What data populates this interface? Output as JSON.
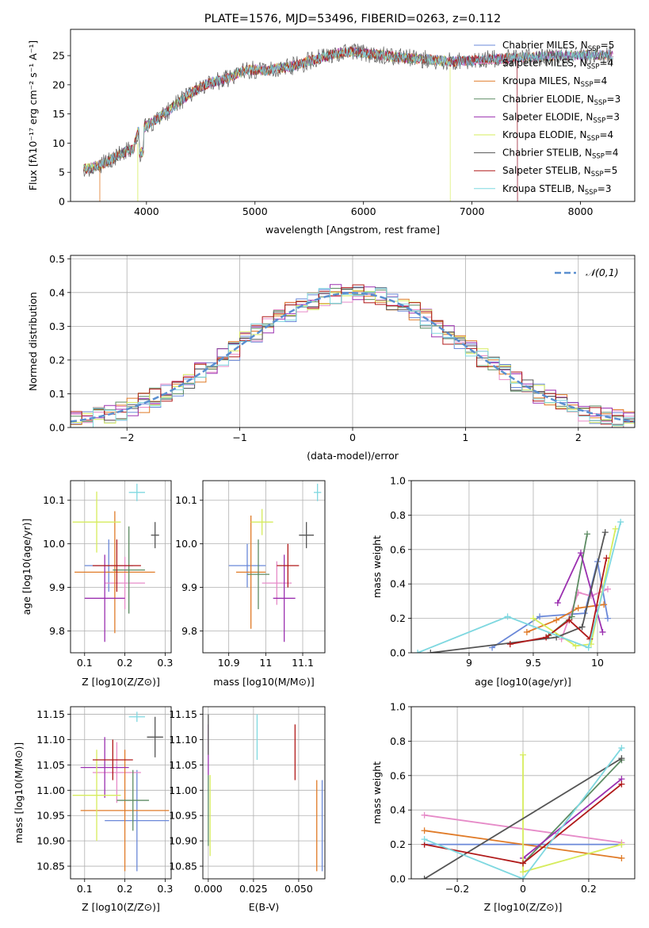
{
  "chart_data": [
    {
      "id": "spectrum",
      "type": "line",
      "title": "PLATE=1576, MJD=53496, FIBERID=0263, z=0.112",
      "xlabel": "wavelength [Angstrom, rest frame]",
      "ylabel": "Flux [fλ10⁻¹⁷ erg cm⁻² s⁻¹ A⁻¹]",
      "xlim": [
        3300,
        8500
      ],
      "ylim": [
        0,
        29.5
      ],
      "xticks": [
        4000,
        5000,
        6000,
        7000,
        8000
      ],
      "yticks": [
        0,
        5,
        10,
        15,
        20,
        25
      ],
      "grid": false,
      "legend_position": "right",
      "continuum": {
        "x": [
          3420,
          3500,
          3600,
          3700,
          3800,
          3880,
          3920,
          4000,
          4100,
          4200,
          4300,
          4400,
          4500,
          4600,
          4700,
          4800,
          4900,
          5000,
          5100,
          5200,
          5300,
          5400,
          5500,
          5600,
          5700,
          5800,
          5900,
          6000,
          6200,
          6400,
          6600,
          6800,
          7000,
          7200,
          7400,
          7600,
          7800,
          8000,
          8200,
          8300
        ],
        "y": [
          5.6,
          5.8,
          6.5,
          7.5,
          8.5,
          9.0,
          12.0,
          13.0,
          14.2,
          15.5,
          17.0,
          18.5,
          19.5,
          20.5,
          20.8,
          21.5,
          22.5,
          22.6,
          22.4,
          22.8,
          23.0,
          23.4,
          24.1,
          24.6,
          25.1,
          25.5,
          25.7,
          25.4,
          25.0,
          24.6,
          24.3,
          24.0,
          24.1,
          24.4,
          24.6,
          24.8,
          25.0,
          25.0,
          25.1,
          25.2
        ]
      },
      "series": [
        {
          "name": "Chabrier MILES, N$_{SSP}$=5",
          "label_main": "Chabrier MILES, N",
          "label_sub": "SSP",
          "label_end": "=5",
          "color": "#6a88d8"
        },
        {
          "name": "Salpeter MILES, N$_{SSP}$=4",
          "label_main": "Salpeter MILES, N",
          "label_sub": "SSP",
          "label_end": "=4",
          "color": "#e68bc8"
        },
        {
          "name": "Kroupa MILES, N$_{SSP}$=4",
          "label_main": "Kroupa MILES, N",
          "label_sub": "SSP",
          "label_end": "=4",
          "color": "#e07b28"
        },
        {
          "name": "Chabrier ELODIE, N$_{SSP}$=3",
          "label_main": "Chabrier ELODIE, N",
          "label_sub": "SSP",
          "label_end": "=3",
          "color": "#5d8c63"
        },
        {
          "name": "Salpeter ELODIE, N$_{SSP}$=3",
          "label_main": "Salpeter ELODIE, N",
          "label_sub": "SSP",
          "label_end": "=3",
          "color": "#9b30b0"
        },
        {
          "name": "Kroupa ELODIE, N$_{SSP}$=4",
          "label_main": "Kroupa ELODIE, N",
          "label_sub": "SSP",
          "label_end": "=4",
          "color": "#d6ec5c"
        },
        {
          "name": "Chabrier STELIB, N$_{SSP}$=4",
          "label_main": "Chabrier STELIB, N",
          "label_sub": "SSP",
          "label_end": "=4",
          "color": "#555555"
        },
        {
          "name": "Salpeter STELIB, N$_{SSP}$=5",
          "label_main": "Salpeter STELIB, N",
          "label_sub": "SSP",
          "label_end": "=5",
          "color": "#b11a1a"
        },
        {
          "name": "Kroupa STELIB, N$_{SSP}$=3",
          "label_main": "Kroupa STELIB, N",
          "label_sub": "SSP",
          "label_end": "=3",
          "color": "#7fd8e0"
        }
      ],
      "model_range_end": {
        "Kroupa ELODIE": 6800,
        "Salpeter STELIB": 7420,
        "Chabrier MILES": 7420
      }
    },
    {
      "id": "residuals",
      "type": "histogram",
      "xlabel": "(data-model)/error",
      "ylabel": "Normed distribution",
      "xlim": [
        -2.5,
        2.5
      ],
      "ylim": [
        0,
        0.51
      ],
      "xticks": [
        -2,
        -1,
        0,
        1,
        2
      ],
      "yticks": [
        0.0,
        0.1,
        0.2,
        0.3,
        0.4,
        0.5
      ],
      "grid": true,
      "bin_width": 0.1,
      "reference": {
        "name": "𝒩(0,1)",
        "color": "#5a8fd0",
        "style": "dashed",
        "mean": 0,
        "sigma": 1
      },
      "legend_position": "top-right"
    },
    {
      "id": "age-vs-Z",
      "type": "errorbar",
      "xlabel": "Z [log10(Z/Z⊙)]",
      "ylabel": "age  [log10(age/yr)]",
      "xlim": [
        0.065,
        0.315
      ],
      "ylim": [
        9.75,
        10.145
      ],
      "xticks": [
        0.1,
        0.2,
        0.3
      ],
      "yticks": [
        9.8,
        9.9,
        10.0,
        10.1
      ],
      "grid": true,
      "points": [
        {
          "x": 0.16,
          "y": 9.95,
          "xerr": 0.06,
          "yerr": 0.06,
          "color": "#6a88d8"
        },
        {
          "x": 0.2,
          "y": 9.91,
          "xerr": 0.05,
          "yerr": 0.06,
          "color": "#e68bc8"
        },
        {
          "x": 0.175,
          "y": 9.935,
          "xerr": 0.1,
          "yerr": 0.14,
          "color": "#e07b28"
        },
        {
          "x": 0.21,
          "y": 9.94,
          "xerr": 0.04,
          "yerr": 0.1,
          "color": "#5d8c63"
        },
        {
          "x": 0.15,
          "y": 9.875,
          "xerr": 0.05,
          "yerr": 0.1,
          "color": "#9b30b0"
        },
        {
          "x": 0.13,
          "y": 10.05,
          "xerr": 0.06,
          "yerr": 0.07,
          "color": "#d6ec5c"
        },
        {
          "x": 0.275,
          "y": 10.02,
          "xerr": 0.01,
          "yerr": 0.03,
          "color": "#555555"
        },
        {
          "x": 0.18,
          "y": 9.95,
          "xerr": 0.06,
          "yerr": 0.06,
          "color": "#b11a1a"
        },
        {
          "x": 0.23,
          "y": 10.118,
          "xerr": 0.02,
          "yerr": 0.02,
          "color": "#7fd8e0"
        }
      ]
    },
    {
      "id": "age-vs-mass",
      "type": "errorbar",
      "xlabel": "mass [log10(M/M⊙)]",
      "ylabel": "",
      "xlim": [
        10.83,
        11.16
      ],
      "ylim": [
        9.75,
        10.145
      ],
      "xticks": [
        10.9,
        11.0,
        11.1
      ],
      "yticks": [
        9.8,
        9.9,
        10.0,
        10.1
      ],
      "grid": true,
      "points": [
        {
          "x": 10.95,
          "y": 9.95,
          "xerr": 0.05,
          "yerr": 0.05,
          "color": "#6a88d8"
        },
        {
          "x": 11.03,
          "y": 9.91,
          "xerr": 0.04,
          "yerr": 0.05,
          "color": "#e68bc8"
        },
        {
          "x": 10.96,
          "y": 9.935,
          "xerr": 0.04,
          "yerr": 0.13,
          "color": "#e07b28"
        },
        {
          "x": 10.98,
          "y": 9.93,
          "xerr": 0.03,
          "yerr": 0.08,
          "color": "#5d8c63"
        },
        {
          "x": 11.05,
          "y": 9.875,
          "xerr": 0.03,
          "yerr": 0.1,
          "color": "#9b30b0"
        },
        {
          "x": 10.99,
          "y": 10.05,
          "xerr": 0.03,
          "yerr": 0.03,
          "color": "#d6ec5c"
        },
        {
          "x": 11.11,
          "y": 10.02,
          "xerr": 0.02,
          "yerr": 0.03,
          "color": "#555555"
        },
        {
          "x": 11.06,
          "y": 9.95,
          "xerr": 0.03,
          "yerr": 0.05,
          "color": "#b11a1a"
        },
        {
          "x": 11.14,
          "y": 10.118,
          "xerr": 0.01,
          "yerr": 0.02,
          "color": "#7fd8e0"
        }
      ]
    },
    {
      "id": "weight-vs-age",
      "type": "line",
      "xlabel": "age  [log10(age/yr)]",
      "ylabel": "mass weight",
      "xlim": [
        8.55,
        10.29
      ],
      "ylim": [
        0,
        1.0
      ],
      "xticks": [
        9.0,
        9.5,
        10.0
      ],
      "yticks": [
        0.0,
        0.2,
        0.4,
        0.6,
        0.8,
        1.0
      ],
      "grid": true,
      "series": [
        {
          "color": "#6a88d8",
          "x": [
            9.18,
            9.55,
            9.9,
            10.0,
            10.08
          ],
          "y": [
            0.03,
            0.21,
            0.23,
            0.53,
            0.2
          ]
        },
        {
          "color": "#e68bc8",
          "x": [
            9.72,
            9.85,
            9.95,
            10.08
          ],
          "y": [
            0.08,
            0.35,
            0.33,
            0.37
          ]
        },
        {
          "color": "#e07b28",
          "x": [
            9.45,
            9.68,
            9.85,
            10.05
          ],
          "y": [
            0.12,
            0.19,
            0.26,
            0.28
          ]
        },
        {
          "color": "#5d8c63",
          "x": [
            9.62,
            9.8,
            9.92
          ],
          "y": [
            0.1,
            0.21,
            0.69
          ]
        },
        {
          "color": "#9b30b0",
          "x": [
            9.69,
            9.87,
            10.04
          ],
          "y": [
            0.29,
            0.58,
            0.12
          ]
        },
        {
          "color": "#d6ec5c",
          "x": [
            9.5,
            9.83,
            9.95,
            10.14
          ],
          "y": [
            0.2,
            0.04,
            0.05,
            0.72
          ]
        },
        {
          "color": "#555555",
          "x": [
            8.7,
            9.68,
            9.88,
            10.06
          ],
          "y": [
            0.0,
            0.09,
            0.15,
            0.7
          ]
        },
        {
          "color": "#b11a1a",
          "x": [
            9.32,
            9.6,
            9.78,
            9.94,
            10.07
          ],
          "y": [
            0.05,
            0.09,
            0.19,
            0.08,
            0.55
          ]
        },
        {
          "color": "#7fd8e0",
          "x": [
            8.6,
            9.3,
            9.93,
            10.18
          ],
          "y": [
            0.0,
            0.21,
            0.03,
            0.76
          ]
        }
      ]
    },
    {
      "id": "mass-vs-Z",
      "type": "errorbar",
      "xlabel": "Z [log10(Z/Z⊙)]",
      "ylabel": "mass [log10(M/M⊙)]",
      "xlim": [
        0.065,
        0.315
      ],
      "ylim": [
        10.825,
        11.165
      ],
      "xticks": [
        0.1,
        0.2,
        0.3
      ],
      "yticks": [
        10.85,
        10.9,
        10.95,
        11.0,
        11.05,
        11.1,
        11.15
      ],
      "grid": true,
      "points": [
        {
          "x": 0.23,
          "y": 10.94,
          "xerr": 0.08,
          "yerr": 0.1,
          "color": "#6a88d8"
        },
        {
          "x": 0.18,
          "y": 11.035,
          "xerr": 0.06,
          "yerr": 0.06,
          "color": "#e68bc8"
        },
        {
          "x": 0.2,
          "y": 10.96,
          "xerr": 0.11,
          "yerr": 0.12,
          "color": "#e07b28"
        },
        {
          "x": 0.22,
          "y": 10.98,
          "xerr": 0.04,
          "yerr": 0.06,
          "color": "#5d8c63"
        },
        {
          "x": 0.15,
          "y": 11.045,
          "xerr": 0.06,
          "yerr": 0.06,
          "color": "#9b30b0"
        },
        {
          "x": 0.13,
          "y": 10.99,
          "xerr": 0.06,
          "yerr": 0.09,
          "color": "#d6ec5c"
        },
        {
          "x": 0.275,
          "y": 11.105,
          "xerr": 0.02,
          "yerr": 0.04,
          "color": "#555555"
        },
        {
          "x": 0.17,
          "y": 11.06,
          "xerr": 0.05,
          "yerr": 0.04,
          "color": "#b11a1a"
        },
        {
          "x": 0.23,
          "y": 11.145,
          "xerr": 0.02,
          "yerr": 0.01,
          "color": "#7fd8e0"
        }
      ]
    },
    {
      "id": "mass-vs-EBV",
      "type": "errorbar",
      "xlabel": "E(B-V)",
      "ylabel": "",
      "xlim": [
        -0.003,
        0.0645
      ],
      "ylim": [
        10.825,
        11.165
      ],
      "xticks": [
        0.0,
        0.025,
        0.05
      ],
      "xticklabels": [
        "0.000",
        "0.025",
        "0.050"
      ],
      "yticks": [
        10.85,
        10.9,
        10.95,
        11.0,
        11.05,
        11.1,
        11.15
      ],
      "grid": true,
      "points": [
        {
          "x": 0.063,
          "y": 10.93,
          "xerr": 0,
          "yerr": 0.09,
          "color": "#6a88d8"
        },
        {
          "x": 0.06,
          "y": 10.93,
          "xerr": 0,
          "yerr": 0.09,
          "color": "#e07b28"
        },
        {
          "x": 0.0,
          "y": 10.96,
          "xerr": 0,
          "yerr": 0.07,
          "color": "#5d8c63"
        },
        {
          "x": 0.0,
          "y": 11.08,
          "xerr": 0,
          "yerr": 0.05,
          "color": "#9b30b0"
        },
        {
          "x": 0.001,
          "y": 10.95,
          "xerr": 0,
          "yerr": 0.08,
          "color": "#d6ec5c"
        },
        {
          "x": 0.0,
          "y": 11.11,
          "xerr": 0,
          "yerr": 0.04,
          "color": "#555555"
        },
        {
          "x": 0.048,
          "y": 11.075,
          "xerr": 0,
          "yerr": 0.055,
          "color": "#b11a1a"
        },
        {
          "x": 0.027,
          "y": 11.105,
          "xerr": 0,
          "yerr": 0.045,
          "color": "#7fd8e0"
        }
      ]
    },
    {
      "id": "weight-vs-Z",
      "type": "line",
      "xlabel": "Z [log10(Z/Z⊙)]",
      "ylabel": "mass weight",
      "xlim": [
        -0.34,
        0.34
      ],
      "ylim": [
        0,
        1.0
      ],
      "xticks": [
        -0.2,
        0.0,
        0.2
      ],
      "yticks": [
        0.0,
        0.2,
        0.4,
        0.6,
        0.8,
        1.0
      ],
      "grid": true,
      "series": [
        {
          "color": "#6a88d8",
          "x": [
            -0.3,
            0.0,
            0.3
          ],
          "y": [
            0.2,
            0.2,
            0.2
          ]
        },
        {
          "color": "#e68bc8",
          "x": [
            -0.3,
            0.3
          ],
          "y": [
            0.37,
            0.21
          ]
        },
        {
          "color": "#e07b28",
          "x": [
            -0.3,
            0.3
          ],
          "y": [
            0.28,
            0.12
          ]
        },
        {
          "color": "#5d8c63",
          "x": [
            0.0,
            0.3
          ],
          "y": [
            0.09,
            0.69
          ]
        },
        {
          "color": "#9b30b0",
          "x": [
            0.0,
            0.3
          ],
          "y": [
            0.12,
            0.58
          ]
        },
        {
          "color": "#d6ec5c",
          "x": [
            0.0,
            0.0,
            0.3
          ],
          "y": [
            0.72,
            0.04,
            0.2
          ]
        },
        {
          "color": "#555555",
          "x": [
            -0.3,
            0.3
          ],
          "y": [
            0.0,
            0.7
          ]
        },
        {
          "color": "#b11a1a",
          "x": [
            -0.3,
            0.0,
            0.3
          ],
          "y": [
            0.2,
            0.09,
            0.55
          ]
        },
        {
          "color": "#7fd8e0",
          "x": [
            -0.3,
            0.0,
            0.3
          ],
          "y": [
            0.23,
            0.0,
            0.76
          ]
        }
      ]
    }
  ]
}
